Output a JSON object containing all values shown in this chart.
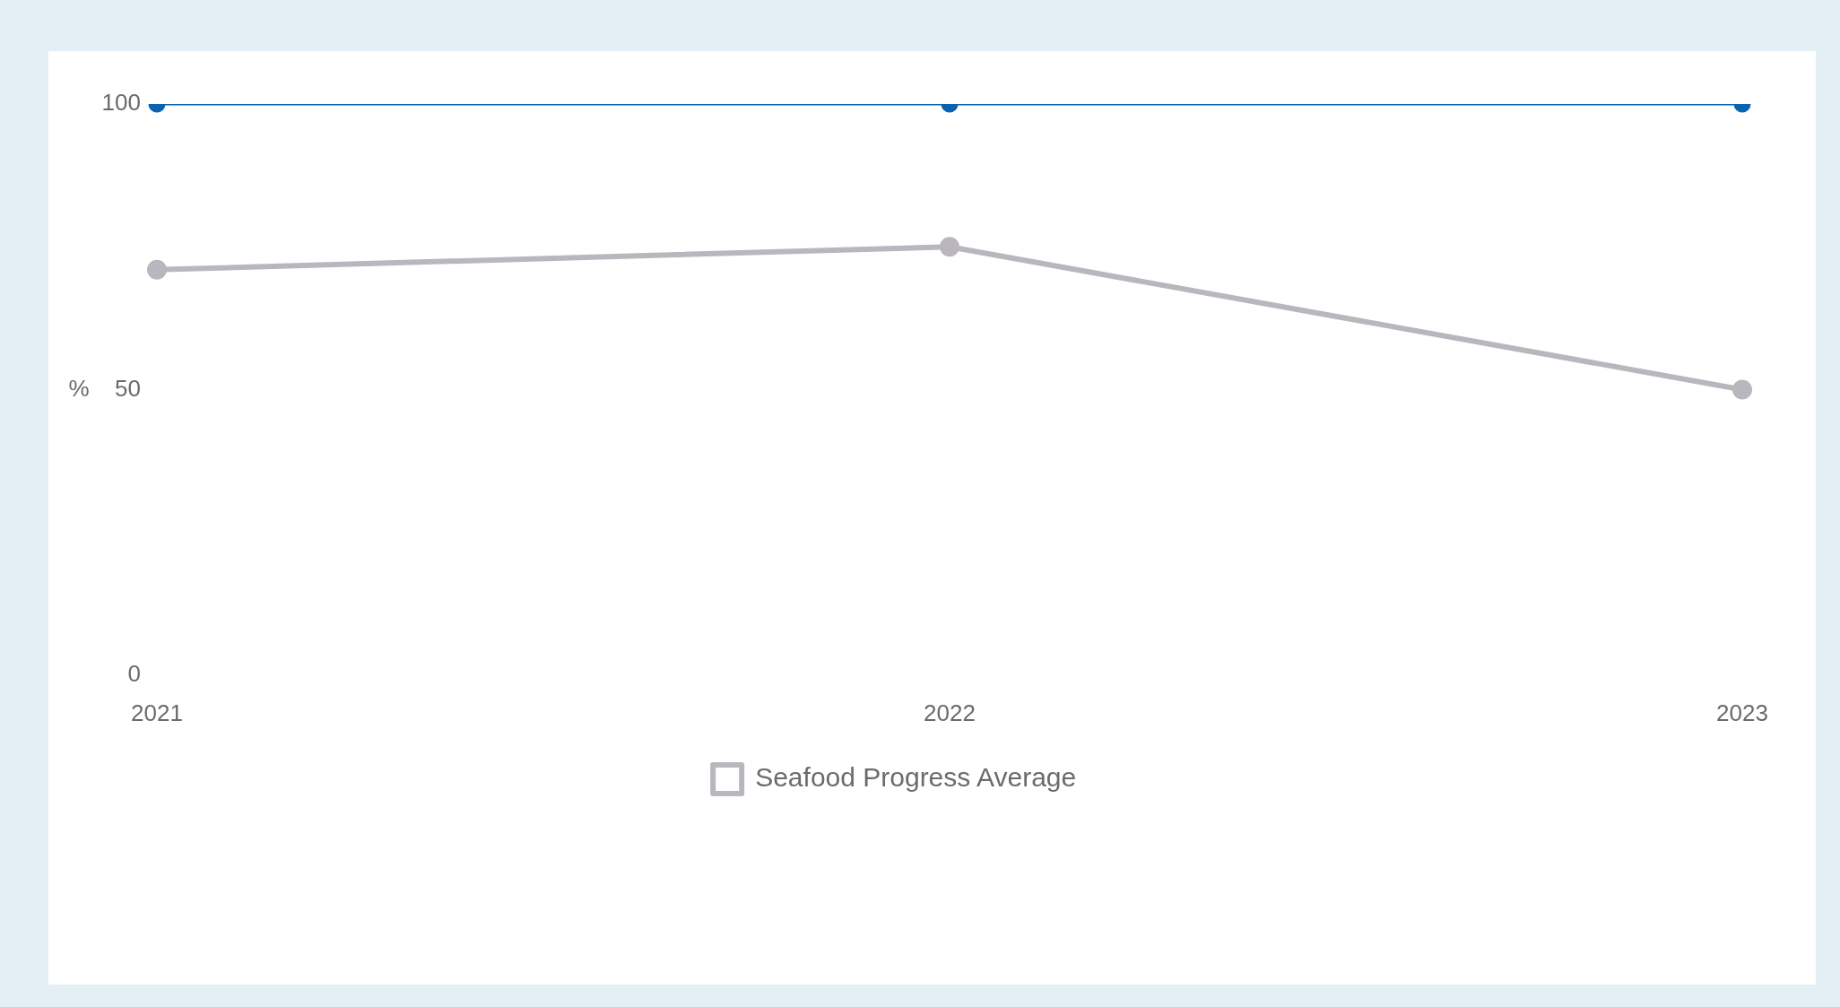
{
  "chart_data": {
    "type": "line",
    "ylabel": "%",
    "categories": [
      "2021",
      "2022",
      "2023"
    ],
    "series": [
      {
        "color": "#0a63ae",
        "values": [
          100,
          100,
          100
        ]
      },
      {
        "name": "Seafood Progress Average",
        "color": "#b9b7bd",
        "values": [
          71,
          75,
          50
        ]
      }
    ],
    "ylim": [
      0,
      100
    ],
    "yticks": [
      0,
      50,
      100
    ],
    "grid": false,
    "legend": "bottom",
    "marker": "circle",
    "line_style": "solid"
  }
}
